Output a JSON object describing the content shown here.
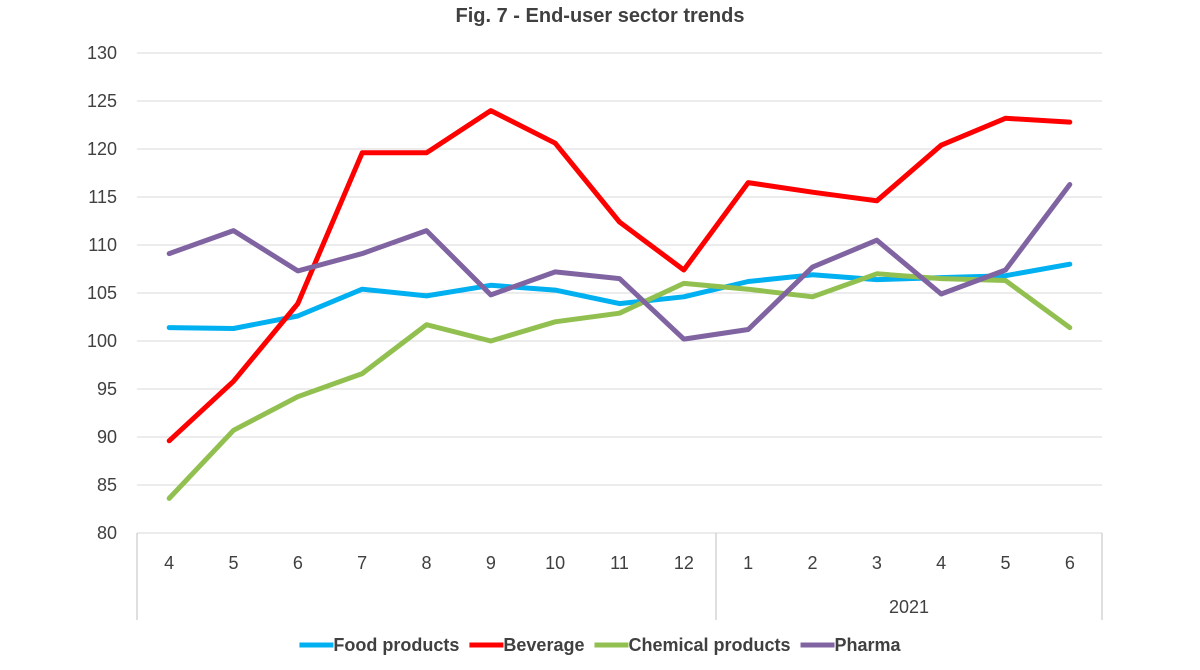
{
  "chart_data": {
    "type": "line",
    "title": "Fig. 7 - End-user sector trends",
    "xlabel": "",
    "ylabel": "",
    "ylim": [
      80,
      130
    ],
    "y_ticks": [
      "80",
      "85",
      "90",
      "95",
      "100",
      "105",
      "110",
      "115",
      "120",
      "125",
      "130"
    ],
    "categories": [
      "4",
      "5",
      "6",
      "7",
      "8",
      "9",
      "10",
      "11",
      "12",
      "1",
      "2",
      "3",
      "4",
      "5",
      "6"
    ],
    "category_groups": [
      {
        "label": "",
        "start": 0,
        "end": 8
      },
      {
        "label": "2021",
        "start": 9,
        "end": 14
      }
    ],
    "grid": true,
    "legend_position": "bottom",
    "series": [
      {
        "name": "Food products",
        "color": "#00B0F0",
        "values": [
          101.4,
          101.3,
          102.6,
          105.4,
          104.7,
          105.8,
          105.3,
          103.9,
          104.6,
          106.2,
          106.9,
          106.4,
          106.6,
          106.8,
          108.0
        ]
      },
      {
        "name": "Beverage",
        "color": "#FF0000",
        "values": [
          89.6,
          95.8,
          103.9,
          119.6,
          119.6,
          124.0,
          120.6,
          112.4,
          107.4,
          116.5,
          115.5,
          114.6,
          120.4,
          123.2,
          122.8
        ]
      },
      {
        "name": "Chemical products",
        "color": "#92C050",
        "values": [
          83.6,
          90.7,
          94.2,
          96.6,
          101.7,
          100.0,
          102.0,
          102.9,
          106.0,
          105.4,
          104.6,
          107.0,
          106.5,
          106.3,
          101.4
        ]
      },
      {
        "name": "Pharma",
        "color": "#8064A2",
        "values": [
          109.1,
          111.5,
          107.3,
          109.1,
          111.5,
          104.8,
          107.2,
          106.5,
          100.2,
          101.2,
          107.7,
          110.5,
          104.9,
          107.4,
          116.3
        ]
      }
    ]
  }
}
